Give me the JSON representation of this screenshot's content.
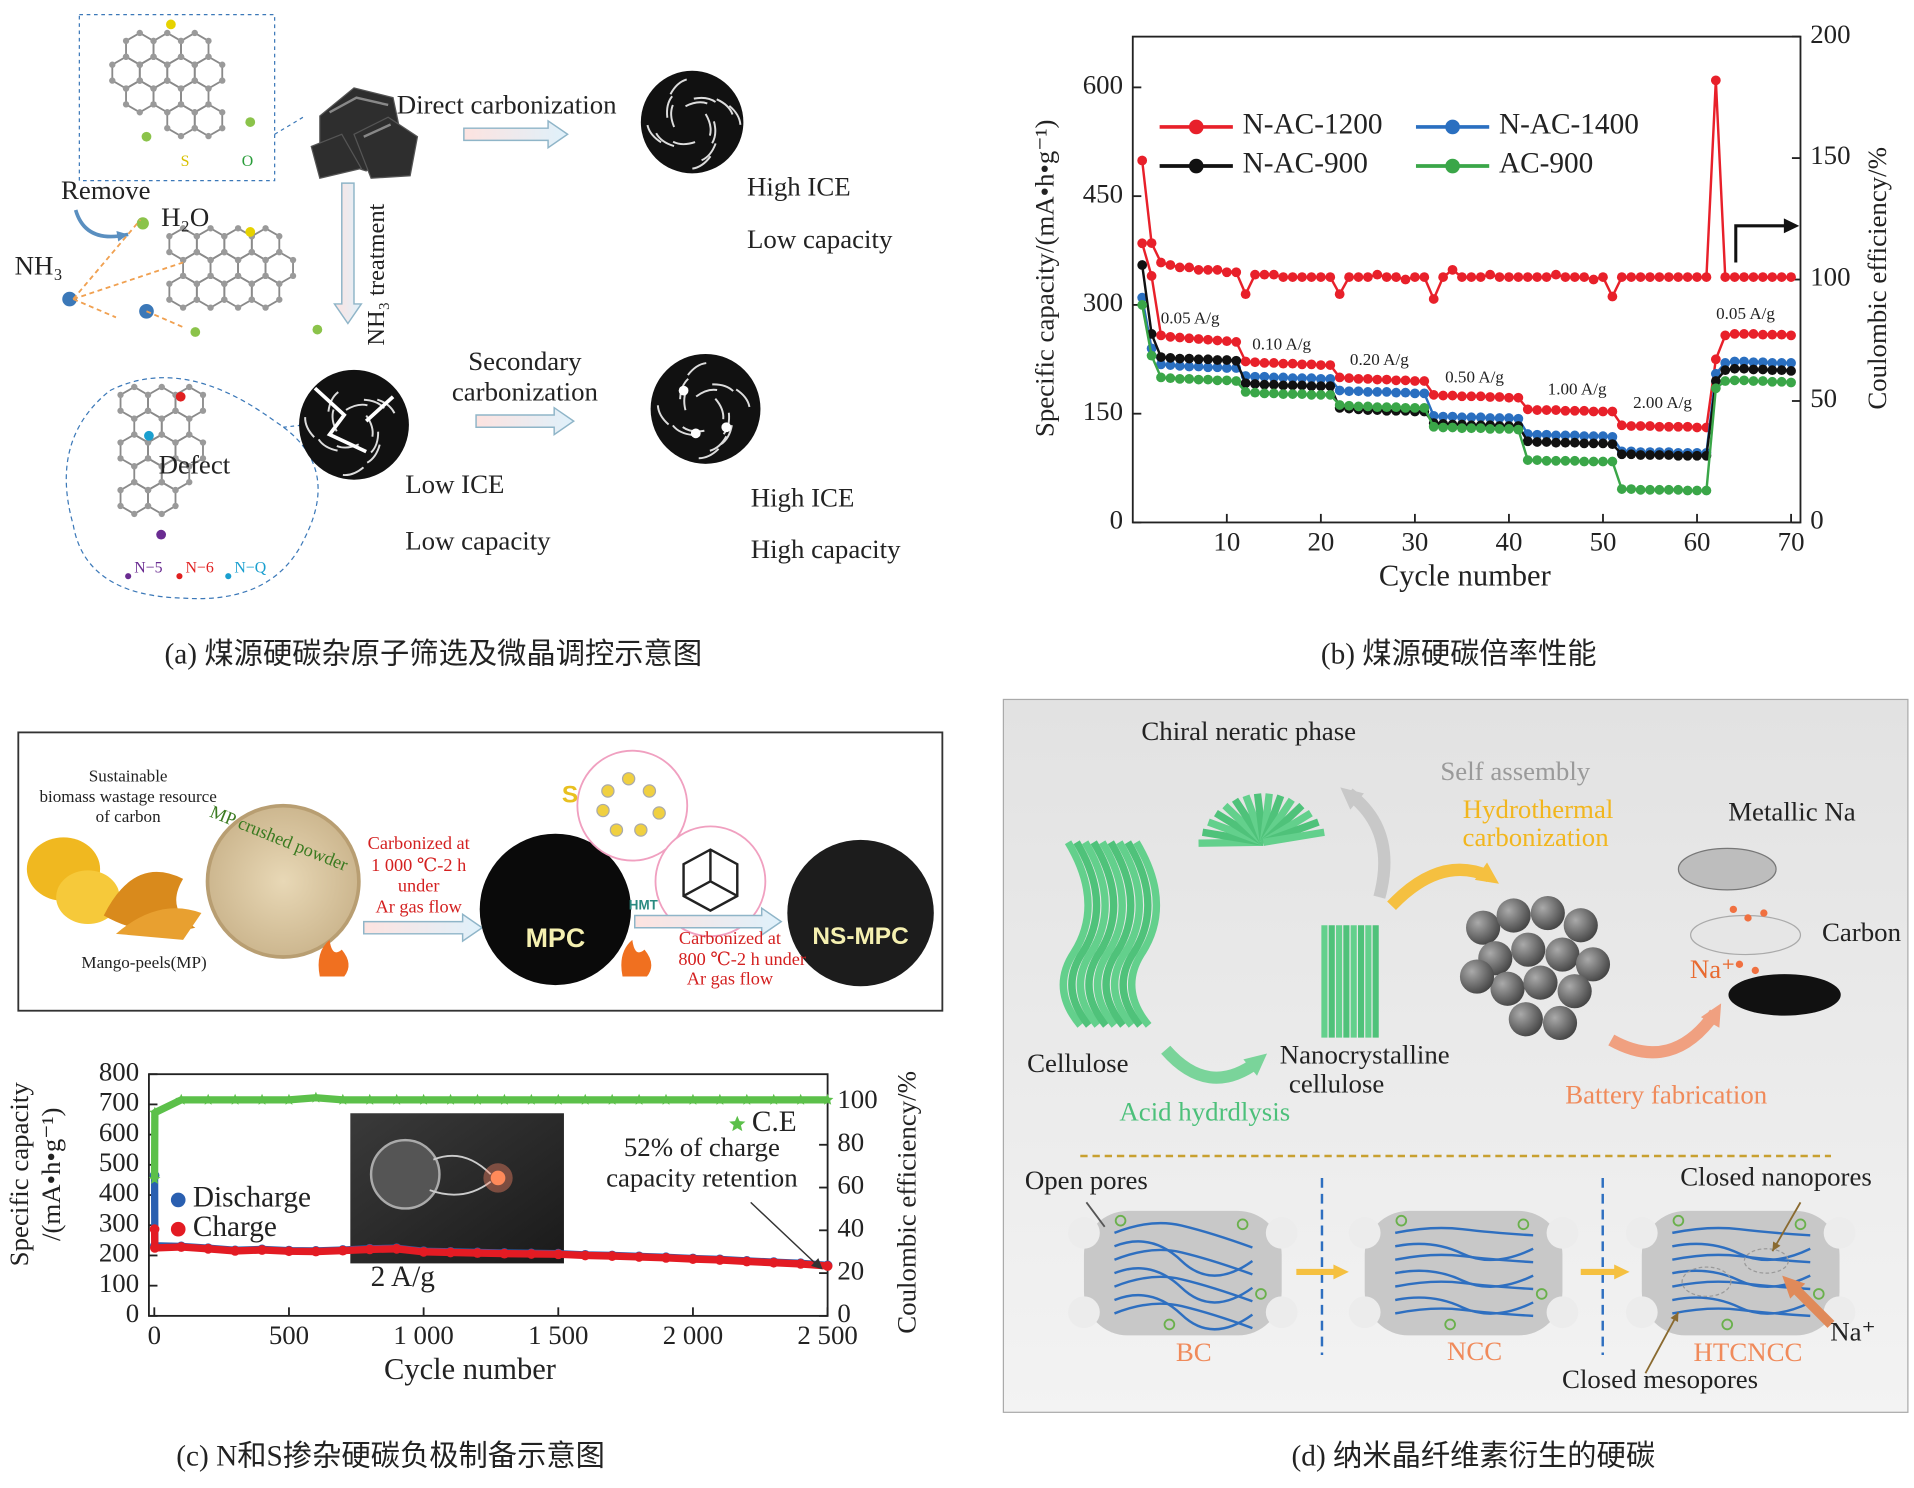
{
  "panel_a": {
    "caption": "(a) 煤源硬碳杂原子筛选及微晶调控示意图",
    "labels": [
      "Direct carbonization",
      "High ICE",
      "Low capacity",
      "Remove",
      "H₂O",
      "NH₃",
      "NH₃ treatment",
      "Secondary",
      "carbonization",
      "Low ICE",
      "Low capacity",
      "High ICE",
      "High capacity",
      "Defect",
      "S",
      "O",
      "N−5",
      "N−6",
      "N−Q"
    ]
  },
  "panel_c": {
    "caption": "(c) N和S掺杂硬碳负极制备示意图",
    "labels": [
      "Sustainable",
      "biomass wastage resource",
      "of carbon",
      "MP crushed powder",
      "Mango-peels(MP)",
      "Carbonized at",
      "1 000 ℃-2  h",
      "under",
      "Ar gas flow",
      "MPC",
      "S",
      "HMT",
      "Carbonized at",
      "800 ℃-2  h under",
      "Ar gas flow",
      "NS-MPC"
    ]
  },
  "panel_d": {
    "caption": "(d) 纳米晶纤维素衍生的硬碳",
    "labels": [
      "Chiral neratic phase",
      "Self assembly",
      "Hydrothermal",
      "carbonization",
      "Metallic Na",
      "Carbon",
      "Na⁺",
      "Cellulose",
      "Nanocrystalline",
      "cellulose",
      "Acid hydrdlysis",
      "Battery fabrication",
      "Open pores",
      "Closed nanopores",
      "BC",
      "NCC",
      "HTCNCC",
      "Na⁺",
      "Closed mesopores"
    ]
  },
  "chart_data": [
    {
      "type": "line",
      "caption": "(b) 煤源硬碳倍率性能",
      "xlabel": "Cycle number",
      "ylabel": "Specific capacity/(mA•h•g⁻¹)",
      "y2label": "Coulombic efficiency/%",
      "x": [
        1,
        2,
        3,
        4,
        5,
        6,
        7,
        8,
        9,
        10,
        11,
        12,
        13,
        14,
        15,
        16,
        17,
        18,
        19,
        20,
        21,
        22,
        23,
        24,
        25,
        26,
        27,
        28,
        29,
        30,
        31,
        32,
        33,
        34,
        35,
        36,
        37,
        38,
        39,
        40,
        41,
        42,
        43,
        44,
        45,
        46,
        47,
        48,
        49,
        50,
        51,
        52,
        53,
        54,
        55,
        56,
        57,
        58,
        59,
        60,
        61,
        62,
        63,
        64,
        65,
        66,
        67,
        68,
        69,
        70
      ],
      "xlim": [
        0,
        71
      ],
      "xticks": [
        10,
        20,
        30,
        40,
        50,
        60,
        70
      ],
      "ylim": [
        0,
        670
      ],
      "yticks": [
        0,
        150,
        300,
        450,
        600
      ],
      "y2lim": [
        0,
        200
      ],
      "y2ticks": [
        0,
        50,
        100,
        150,
        200
      ],
      "series": [
        {
          "name": "N-AC-1200",
          "color": "#e8202a",
          "marker": "circle",
          "values": [
            385,
            340,
            258,
            256,
            255,
            254,
            253,
            252,
            251,
            250,
            249,
            222,
            221,
            220,
            220,
            219,
            219,
            218,
            218,
            217,
            217,
            200,
            199,
            198,
            198,
            197,
            197,
            196,
            196,
            195,
            195,
            176,
            175,
            175,
            174,
            174,
            174,
            173,
            173,
            172,
            172,
            156,
            155,
            155,
            155,
            154,
            154,
            154,
            153,
            153,
            153,
            134,
            133,
            133,
            133,
            132,
            132,
            132,
            132,
            131,
            131,
            225,
            258,
            260,
            260,
            260,
            259,
            259,
            259,
            258
          ]
        },
        {
          "name": "N-AC-1400",
          "color": "#2a6fc0",
          "marker": "circle",
          "values": [
            310,
            240,
            218,
            217,
            216,
            215,
            215,
            214,
            214,
            213,
            213,
            202,
            201,
            201,
            200,
            200,
            199,
            199,
            199,
            198,
            198,
            182,
            181,
            181,
            180,
            180,
            180,
            179,
            179,
            178,
            178,
            147,
            146,
            146,
            145,
            145,
            145,
            144,
            144,
            144,
            143,
            122,
            121,
            121,
            120,
            120,
            120,
            119,
            119,
            119,
            118,
            98,
            98,
            97,
            97,
            97,
            97,
            96,
            96,
            96,
            96,
            205,
            220,
            222,
            222,
            221,
            221,
            220,
            220,
            220
          ]
        },
        {
          "name": "N-AC-900",
          "color": "#111111",
          "marker": "circle",
          "values": [
            355,
            260,
            228,
            227,
            226,
            226,
            225,
            225,
            224,
            224,
            223,
            192,
            191,
            190,
            190,
            189,
            189,
            189,
            188,
            188,
            188,
            158,
            157,
            156,
            155,
            155,
            154,
            154,
            154,
            153,
            153,
            137,
            136,
            135,
            135,
            134,
            134,
            134,
            133,
            133,
            133,
            112,
            111,
            111,
            110,
            110,
            110,
            109,
            109,
            109,
            108,
            94,
            94,
            93,
            93,
            93,
            93,
            92,
            92,
            92,
            92,
            195,
            210,
            212,
            212,
            211,
            211,
            210,
            210,
            209
          ]
        },
        {
          "name": "AC-900",
          "color": "#3aa648",
          "marker": "circle",
          "values": [
            300,
            230,
            200,
            199,
            198,
            198,
            197,
            197,
            196,
            196,
            195,
            180,
            179,
            178,
            178,
            177,
            177,
            177,
            176,
            176,
            176,
            162,
            161,
            160,
            160,
            159,
            159,
            159,
            158,
            158,
            158,
            132,
            131,
            131,
            130,
            130,
            130,
            129,
            129,
            129,
            128,
            86,
            86,
            85,
            85,
            85,
            85,
            84,
            84,
            84,
            84,
            46,
            46,
            45,
            45,
            45,
            45,
            45,
            44,
            44,
            44,
            185,
            195,
            196,
            196,
            195,
            195,
            194,
            194,
            193
          ]
        },
        {
          "color": "#e8202a",
          "marker": "circle",
          "axis": "y2",
          "values": [
            149,
            115,
            107,
            106,
            105,
            105,
            104,
            104,
            104,
            103,
            103,
            94,
            102,
            102,
            102,
            101,
            101,
            101,
            101,
            101,
            101,
            94,
            101,
            101,
            101,
            102,
            101,
            101,
            100,
            101,
            101,
            92,
            101,
            104,
            101,
            101,
            101,
            102,
            101,
            101,
            101,
            101,
            101,
            101,
            102,
            101,
            101,
            101,
            100,
            101,
            93,
            101,
            101,
            101,
            101,
            101,
            101,
            101,
            101,
            101,
            101,
            182,
            101,
            101,
            101,
            101,
            101,
            101,
            101,
            101
          ]
        }
      ],
      "annotations": [
        "0.05 A/g",
        "0.10 A/g",
        "0.20 A/g",
        "0.50 A/g",
        "1.00 A/g",
        "2.00 A/g",
        "0.05 A/g"
      ]
    },
    {
      "type": "line",
      "xlabel": "Cycle number",
      "ylabel": [
        "Specific capacity",
        "/(mA•h•g⁻¹)"
      ],
      "y2label": "Coulombic efficiency/%",
      "x": [
        1,
        2,
        100,
        200,
        300,
        400,
        500,
        600,
        700,
        800,
        900,
        1000,
        1100,
        1200,
        1300,
        1400,
        1500,
        1600,
        1700,
        1800,
        1900,
        2000,
        2100,
        2200,
        2300,
        2400,
        2500
      ],
      "xlim": [
        -20,
        2500
      ],
      "xticks": [
        0,
        500,
        {
          "value": 1000,
          "label": "1 000"
        },
        {
          "value": 1500,
          "label": "1 500"
        },
        {
          "value": 2000,
          "label": "2 000"
        },
        {
          "value": 2500,
          "label": "2 500"
        }
      ],
      "ylim": [
        0,
        800
      ],
      "yticks": [
        0,
        100,
        200,
        300,
        400,
        500,
        600,
        700,
        800
      ],
      "y2lim": [
        0,
        113
      ],
      "y2ticks": [
        0,
        20,
        40,
        60,
        80,
        100
      ],
      "series": [
        {
          "name": "Discharge",
          "color": "#2a5fb0",
          "marker": "circle",
          "values": [
            465,
            232,
            230,
            224,
            217,
            220,
            216,
            215,
            218,
            222,
            224,
            214,
            212,
            210,
            208,
            207,
            206,
            202,
            200,
            197,
            194,
            190,
            187,
            182,
            178,
            174,
            167
          ]
        },
        {
          "name": "Charge",
          "color": "#e31b23",
          "marker": "circle",
          "values": [
            287,
            225,
            228,
            222,
            215,
            218,
            214,
            213,
            216,
            220,
            222,
            212,
            210,
            208,
            206,
            205,
            204,
            200,
            198,
            195,
            192,
            188,
            185,
            180,
            176,
            172,
            165
          ]
        },
        {
          "name": "C.E",
          "color": "#5cc04a",
          "marker": "star",
          "axis": "y2",
          "values": [
            64,
            95,
            101,
            101,
            101,
            101,
            101,
            102,
            101,
            101,
            101,
            101,
            101,
            101,
            101,
            101,
            101,
            101,
            101,
            101,
            101,
            101,
            101,
            101,
            101,
            101,
            101
          ]
        }
      ],
      "annotations": [
        "2 A/g",
        "52% of  charge",
        "capacity retention"
      ]
    }
  ]
}
